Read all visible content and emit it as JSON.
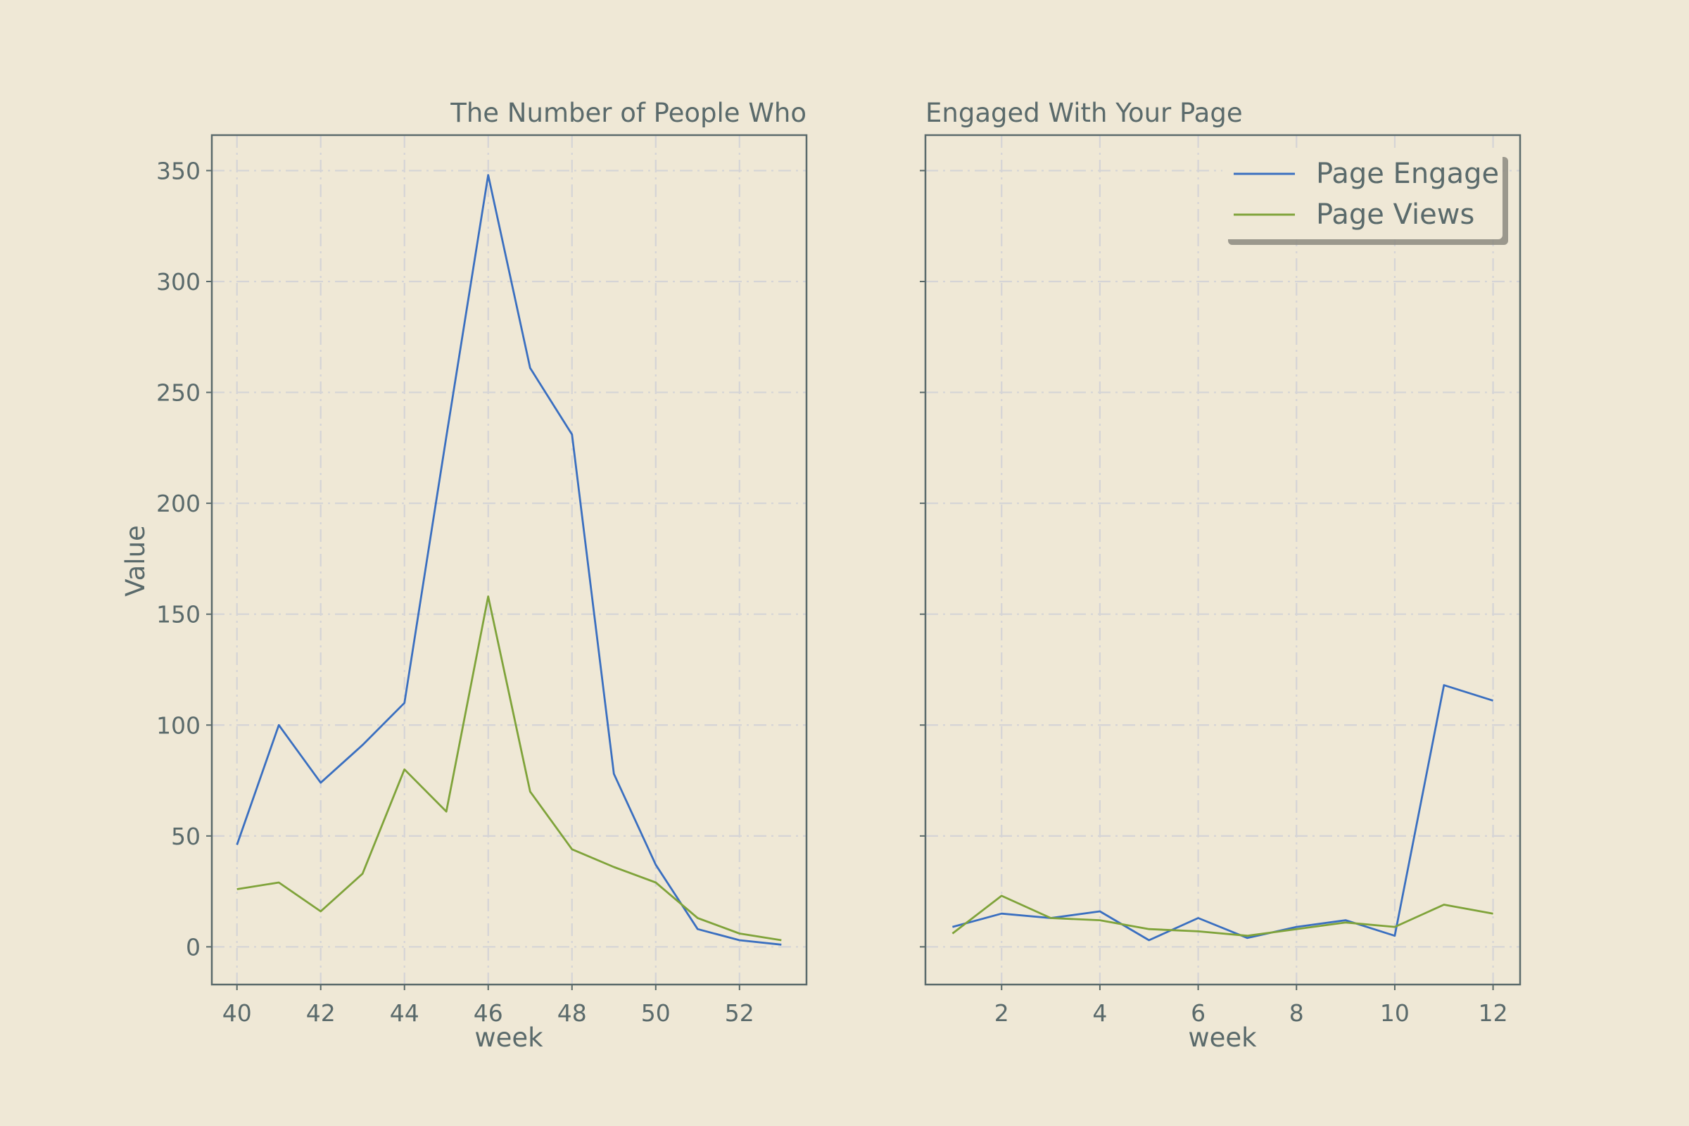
{
  "chart_data": [
    {
      "type": "line",
      "title": "The Number of People Who",
      "xlabel": "week",
      "ylabel": "Value",
      "xlim": [
        39.4,
        53.6
      ],
      "ylim": [
        -17,
        366
      ],
      "xticks": [
        40,
        42,
        44,
        46,
        48,
        50,
        52
      ],
      "yticks": [
        0,
        50,
        100,
        150,
        200,
        250,
        300,
        350
      ],
      "grid": true,
      "x": [
        40,
        41,
        42,
        43,
        44,
        45,
        46,
        47,
        48,
        49,
        50,
        51,
        52,
        53
      ],
      "series": [
        {
          "name": "Page Engage",
          "color": "#3a6fc0",
          "values": [
            46,
            100,
            74,
            91,
            110,
            230,
            348,
            261,
            231,
            78,
            37,
            8,
            3,
            1
          ]
        },
        {
          "name": "Page Views",
          "color": "#7fa33a",
          "values": [
            26,
            29,
            16,
            33,
            80,
            61,
            158,
            70,
            44,
            36,
            29,
            13,
            6,
            3
          ]
        }
      ]
    },
    {
      "type": "line",
      "title": "Engaged With Your Page",
      "xlabel": "week",
      "ylabel": "",
      "xlim": [
        0.45,
        12.55
      ],
      "ylim": [
        -17,
        366
      ],
      "xticks": [
        2,
        4,
        6,
        8,
        10,
        12
      ],
      "grid": true,
      "legend": "top-right",
      "x": [
        1,
        2,
        3,
        4,
        5,
        6,
        7,
        8,
        9,
        10,
        11,
        12
      ],
      "series": [
        {
          "name": "Page Engage",
          "color": "#3a6fc0",
          "values": [
            9,
            15,
            13,
            16,
            3,
            13,
            4,
            9,
            12,
            5,
            118,
            111
          ]
        },
        {
          "name": "Page Views",
          "color": "#7fa33a",
          "values": [
            6,
            23,
            13,
            12,
            8,
            7,
            5,
            8,
            11,
            9,
            19,
            15
          ]
        }
      ]
    }
  ],
  "legend": {
    "items": [
      {
        "label": "Page Engage",
        "color": "#3a6fc0"
      },
      {
        "label": "Page Views",
        "color": "#7fa33a"
      }
    ]
  }
}
